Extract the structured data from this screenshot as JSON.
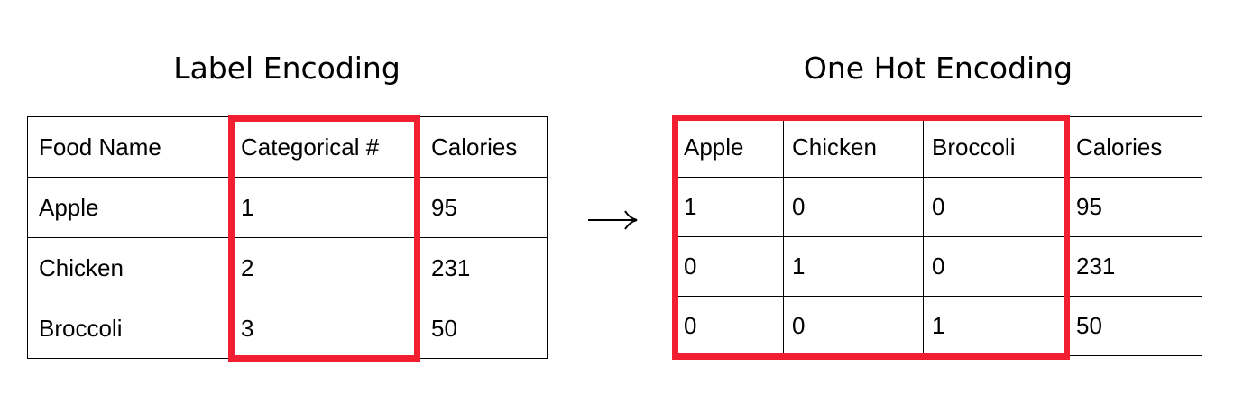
{
  "label_encoding": {
    "title": "Label Encoding",
    "headers": [
      "Food Name",
      "Categorical #",
      "Calories"
    ],
    "rows": [
      [
        "Apple",
        "1",
        "95"
      ],
      [
        "Chicken",
        "2",
        "231"
      ],
      [
        "Broccoli",
        "3",
        "50"
      ]
    ],
    "highlighted_column": "Categorical #"
  },
  "one_hot_encoding": {
    "title": "One Hot Encoding",
    "headers": [
      "Apple",
      "Chicken",
      "Broccoli",
      "Calories"
    ],
    "rows": [
      [
        "1",
        "0",
        "0",
        "95"
      ],
      [
        "0",
        "1",
        "0",
        "231"
      ],
      [
        "0",
        "0",
        "1",
        "50"
      ]
    ],
    "highlighted_columns": [
      "Apple",
      "Chicken",
      "Broccoli"
    ]
  },
  "arrow_icon": "right-arrow-icon",
  "colors": {
    "highlight": "#f21f33",
    "border": "#000000",
    "text": "#000000",
    "background": "#ffffff"
  }
}
